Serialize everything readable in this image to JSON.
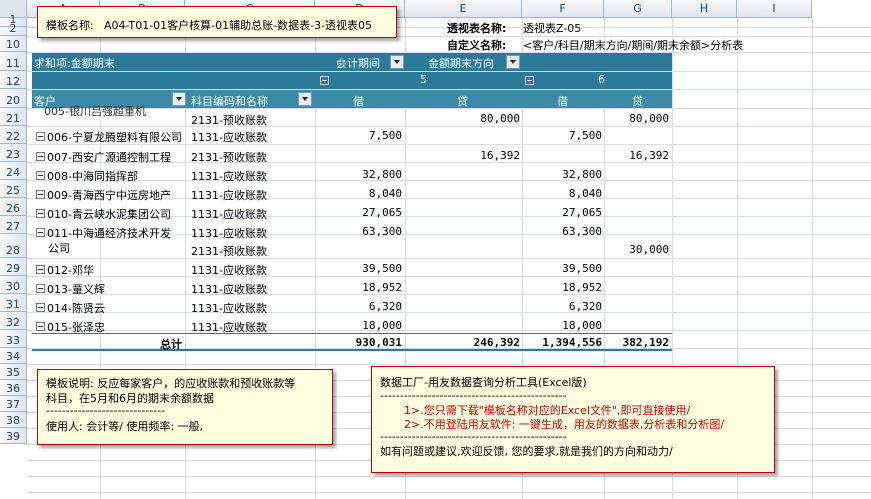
{
  "columns": [
    "A",
    "B",
    "C",
    "D",
    "E",
    "F",
    "G",
    "H",
    "I"
  ],
  "rows": [
    "1",
    "2",
    "10",
    "11",
    "12",
    "20",
    "21",
    "22",
    "23",
    "24",
    "25",
    "26",
    "27",
    "28",
    "29",
    "30",
    "31",
    "32",
    "33",
    "34",
    "35",
    "36",
    "37",
    "38",
    "39"
  ],
  "info": {
    "pivot_name_label": "透视表名称:",
    "pivot_name_value": "透视表Z-05",
    "custom_name_label": "自定义名称:",
    "custom_name_value": "<客户/科目/期末方向/期间/期末余额>分析表"
  },
  "template_note": {
    "label": "模板名称:",
    "value": "A04-T01-01客户核算-01辅助总账-数据表-3-透视表05"
  },
  "pivot": {
    "value_field": "求和项:金额期末",
    "period_field": "会计期间",
    "direction_field": "金额期末方向",
    "period_5": "5",
    "period_6": "6",
    "customer_field": "客户",
    "account_field": "科目编码和名称",
    "debit": "借",
    "credit": "贷",
    "top_partial": "005-银川吕强超重机",
    "rows": [
      {
        "row": "21",
        "customer": "006-宁夏龙腾塑料有限公司",
        "account": "1131-应收账款",
        "d5": "7,500",
        "c5": "",
        "d6": "7,500",
        "c6": ""
      },
      {
        "row": "22",
        "customer": "007-西安广源通控制工程",
        "account": "2131-预收账款",
        "d5": "",
        "c5": "16,392",
        "d6": "",
        "c6": "16,392"
      },
      {
        "row": "23",
        "customer": "008-中海同指挥部",
        "account": "1131-应收账款",
        "d5": "32,800",
        "c5": "",
        "d6": "32,800",
        "c6": ""
      },
      {
        "row": "24",
        "customer": "009-青海西宁中远房地产",
        "account": "1131-应收账款",
        "d5": "8,040",
        "c5": "",
        "d6": "8,040",
        "c6": ""
      },
      {
        "row": "25",
        "customer": "010-青云峡水泥集团公司",
        "account": "1131-应收账款",
        "d5": "27,065",
        "c5": "",
        "d6": "27,065",
        "c6": ""
      },
      {
        "row": "26",
        "customer": "011-中海通经济技术开发",
        "account": "1131-应收账款",
        "d5": "63,300",
        "c5": "",
        "d6": "63,300",
        "c6": ""
      },
      {
        "row": "28",
        "customer": "012-邓华",
        "account": "1131-应收账款",
        "d5": "39,500",
        "c5": "",
        "d6": "39,500",
        "c6": ""
      },
      {
        "row": "29",
        "customer": "013-童义辉",
        "account": "1131-应收账款",
        "d5": "18,952",
        "c5": "",
        "d6": "18,952",
        "c6": ""
      },
      {
        "row": "30",
        "customer": "014-陈贤云",
        "account": "1131-应收账款",
        "d5": "6,320",
        "c5": "",
        "d6": "6,320",
        "c6": ""
      },
      {
        "row": "31",
        "customer": "015-张泽忠",
        "account": "1131-应收账款",
        "d5": "18,000",
        "c5": "",
        "d6": "18,000",
        "c6": ""
      }
    ],
    "row20": {
      "account": "2131-预收账款",
      "c5": "80,000",
      "c6": "80,000"
    },
    "row27": {
      "customer_cont": "公司",
      "account": "2131-预收账款",
      "c6": "30,000"
    },
    "total": {
      "label": "总计",
      "d5": "930,031",
      "c5": "246,392",
      "d6": "1,394,556",
      "c6": "382,192"
    }
  },
  "template_desc": {
    "line1": "模板说明: 反应每家客户，的应收账款和预收账款等",
    "line2": "科目，在5月和6月的期末余额数据",
    "divider": "------------------------------",
    "line3": "使用人: 会计等/      使用频率: 一般,"
  },
  "ad_note": {
    "title": "数据工厂-用友数据查询分析工具(Excel版)",
    "divider": "-----------------------------------------------",
    "line1": "1>.您只需下载\"模板名称对应的Excel文件\",即可直接使用/",
    "line2": "2>.不用登陆用友软件: 一键生成，用友的数据表,分析表和分析图/",
    "divider2": "-----------------------------------------------",
    "line3": "如有问题或建议,欢迎反馈, 您的要求,就是我们的方向和动力/"
  }
}
